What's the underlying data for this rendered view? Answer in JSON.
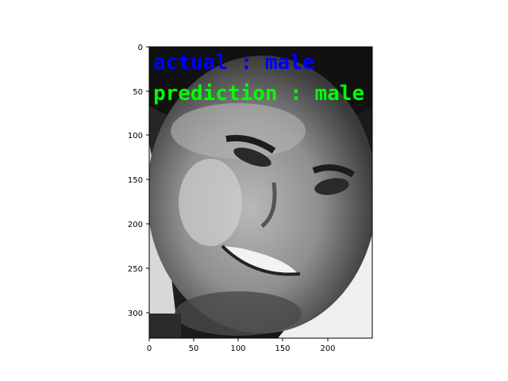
{
  "image_plot": {
    "x_axis": {
      "range": [
        0,
        250
      ],
      "ticks": [
        "0",
        "50",
        "100",
        "150",
        "200"
      ]
    },
    "y_axis": {
      "range": [
        0,
        330
      ],
      "ticks": [
        "0",
        "50",
        "100",
        "150",
        "200",
        "250",
        "300"
      ],
      "inverted": true
    },
    "image_content": "grayscale face photo",
    "overlay": {
      "actual_text": "actual : male",
      "actual_color": "#0000ff",
      "prediction_text": "prediction : male",
      "prediction_color": "#00ff00"
    }
  }
}
